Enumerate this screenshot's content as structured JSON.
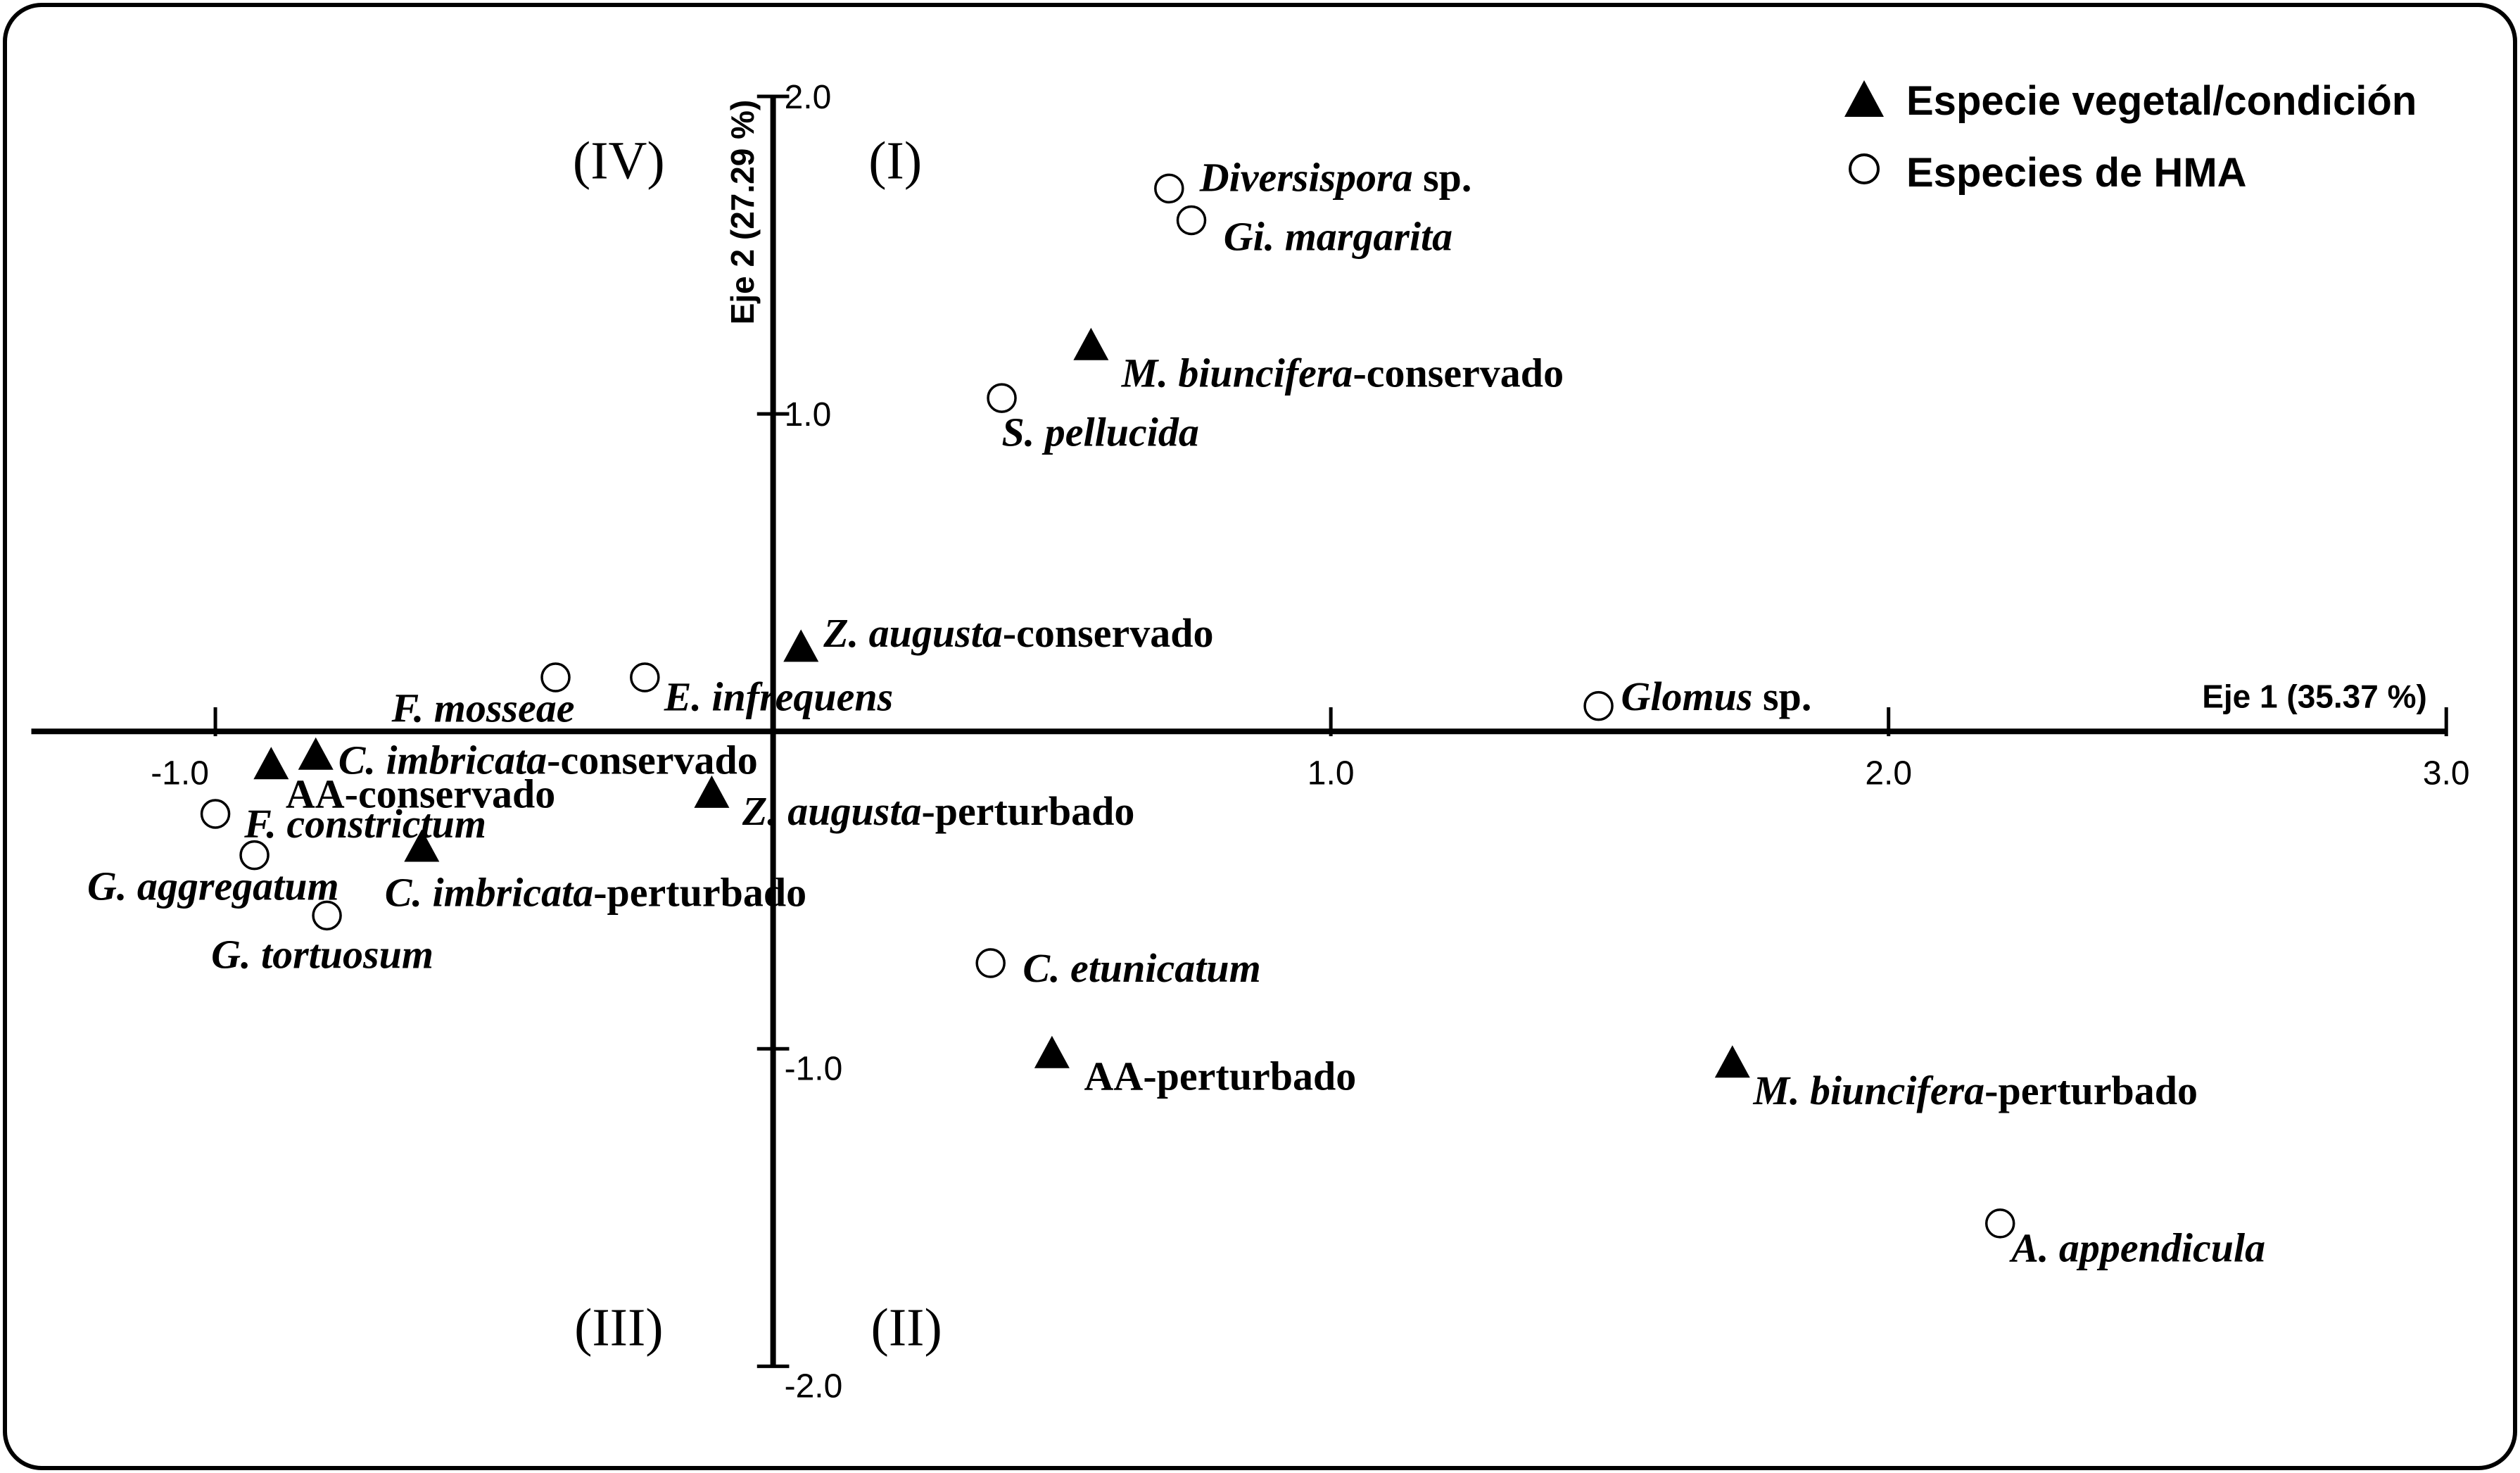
{
  "colors": {
    "marker": "#000000",
    "axis": "#000000",
    "background": "#ffffff"
  },
  "chart_data": {
    "type": "scatter",
    "xlabel": "Eje 1 (35.37 %)",
    "ylabel": "Eje 2 (27.29 %)",
    "xlim": [
      -1.33,
      3.0
    ],
    "ylim": [
      -2.0,
      2.0
    ],
    "xticks": [
      {
        "value": -1.0,
        "label": "-1.0"
      },
      {
        "value": 1.0,
        "label": "1.0"
      },
      {
        "value": 2.0,
        "label": "2.0"
      },
      {
        "value": 3.0,
        "label": "3.0"
      }
    ],
    "yticks": [
      {
        "value": 2.0,
        "label": "2.0"
      },
      {
        "value": 1.0,
        "label": "1.0"
      },
      {
        "value": -1.0,
        "label": "-1.0"
      },
      {
        "value": -2.0,
        "label": "-2.0"
      }
    ],
    "grid": false,
    "legend_position": "top-right",
    "quadrant_labels": {
      "I": "(I)",
      "II": "(II)",
      "III": "(III)",
      "IV": "(IV)"
    },
    "series": [
      {
        "name": "Especie vegetal/condición",
        "marker": "filled-triangle",
        "points": [
          {
            "x": 0.57,
            "y": 1.21,
            "label": [
              {
                "text": "M. biuncifera",
                "italic": true
              },
              {
                "text": "-conservado",
                "italic": false
              }
            ]
          },
          {
            "x": 0.05,
            "y": 0.26,
            "label": [
              {
                "text": "Z. augusta",
                "italic": true
              },
              {
                "text": "-conservado",
                "italic": false
              }
            ]
          },
          {
            "x": -0.82,
            "y": -0.08,
            "label": [
              {
                "text": "C. imbricata",
                "italic": true
              },
              {
                "text": "-conservado",
                "italic": false
              }
            ]
          },
          {
            "x": -0.9,
            "y": -0.11,
            "label": [
              {
                "text": "AA-conservado",
                "italic": false
              }
            ]
          },
          {
            "x": -0.11,
            "y": -0.2,
            "label": [
              {
                "text": "Z. augusta",
                "italic": true
              },
              {
                "text": "-perturbado",
                "italic": false
              }
            ]
          },
          {
            "x": -0.63,
            "y": -0.37,
            "label": [
              {
                "text": "C. imbricata",
                "italic": true
              },
              {
                "text": "-perturbado",
                "italic": false
              }
            ]
          },
          {
            "x": 0.5,
            "y": -1.02,
            "label": [
              {
                "text": "AA-perturbado",
                "italic": false
              }
            ]
          },
          {
            "x": 1.72,
            "y": -1.05,
            "label": [
              {
                "text": "M. biuncifera",
                "italic": true
              },
              {
                "text": "-perturbado",
                "italic": false
              }
            ]
          }
        ]
      },
      {
        "name": "Especies de HMA",
        "marker": "open-circle",
        "points": [
          {
            "x": 0.71,
            "y": 1.71,
            "label": [
              {
                "text": "Diversispora",
                "italic": true
              },
              {
                "text": " sp.",
                "italic": false
              }
            ]
          },
          {
            "x": 0.75,
            "y": 1.61,
            "label": [
              {
                "text": "Gi. margarita",
                "italic": true
              }
            ]
          },
          {
            "x": 0.41,
            "y": 1.05,
            "label": [
              {
                "text": "S. pellucida",
                "italic": true
              }
            ]
          },
          {
            "x": -0.39,
            "y": 0.17,
            "label": [
              {
                "text": "F. mosseae",
                "italic": true
              }
            ]
          },
          {
            "x": -0.23,
            "y": 0.17,
            "label": [
              {
                "text": "E. infrequens",
                "italic": true
              }
            ]
          },
          {
            "x": 1.48,
            "y": 0.08,
            "label": [
              {
                "text": "Glomus",
                "italic": true
              },
              {
                "text": " sp.",
                "italic": false
              }
            ]
          },
          {
            "x": -1.0,
            "y": -0.26,
            "label": [
              {
                "text": "F. constrictum",
                "italic": true
              }
            ]
          },
          {
            "x": -0.93,
            "y": -0.39,
            "label": [
              {
                "text": "G. aggregatum",
                "italic": true
              }
            ]
          },
          {
            "x": -0.8,
            "y": -0.58,
            "label": [
              {
                "text": "G. tortuosum",
                "italic": true
              }
            ]
          },
          {
            "x": 0.39,
            "y": -0.73,
            "label": [
              {
                "text": "C. etunicatum",
                "italic": true
              }
            ]
          },
          {
            "x": 2.2,
            "y": -1.55,
            "label": [
              {
                "text": "A. appendicula",
                "italic": true
              }
            ]
          }
        ]
      }
    ]
  }
}
